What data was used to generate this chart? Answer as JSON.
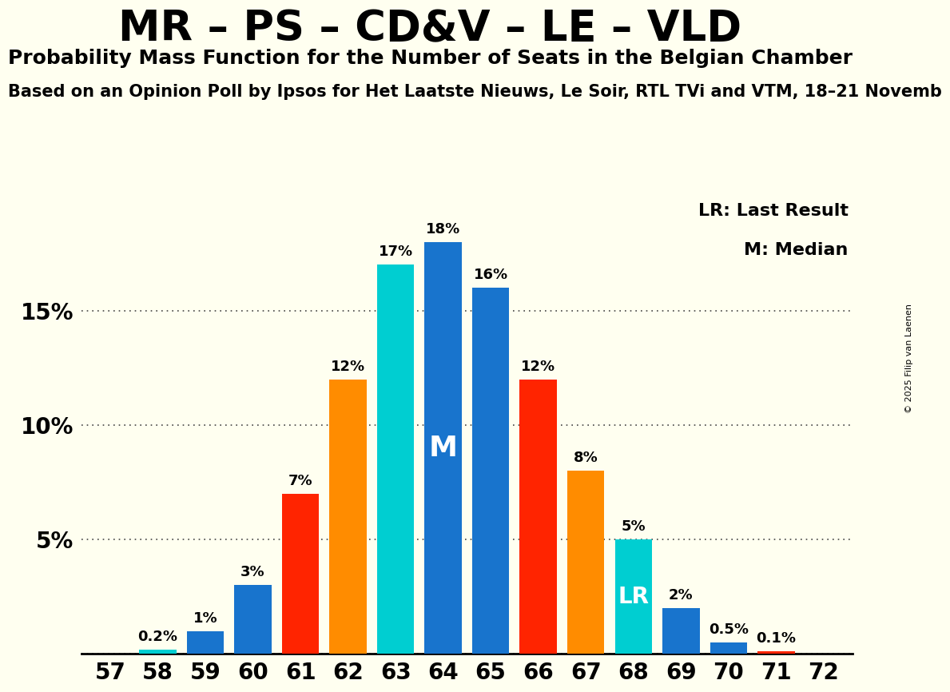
{
  "title": "MR – PS – CD&V – LE – VLD",
  "subtitle": "Probability Mass Function for the Number of Seats in the Belgian Chamber",
  "subtitle2": "Based on an Opinion Poll by Ipsos for Het Laatste Nieuws, Le Soir, RTL TVi and VTM, 18–21 Novemb",
  "copyright": "© 2025 Filip van Laenen",
  "seats": [
    57,
    58,
    59,
    60,
    61,
    62,
    63,
    64,
    65,
    66,
    67,
    68,
    69,
    70,
    71,
    72
  ],
  "probabilities": [
    0.0,
    0.2,
    1.0,
    3.0,
    7.0,
    12.0,
    17.0,
    18.0,
    16.0,
    12.0,
    8.0,
    5.0,
    2.0,
    0.5,
    0.1,
    0.0
  ],
  "bar_colors_map": {
    "57": "#1874CD",
    "58": "#00CED1",
    "59": "#1874CD",
    "60": "#1874CD",
    "61": "#FF2400",
    "62": "#FF8C00",
    "63": "#00CED1",
    "64": "#1874CD",
    "65": "#1874CD",
    "66": "#FF2400",
    "67": "#FF8C00",
    "68": "#00CED1",
    "69": "#1874CD",
    "70": "#1874CD",
    "71": "#FF2400",
    "72": "#FF2400"
  },
  "median_seat": 64,
  "lr_seat": 68,
  "ylim": [
    0,
    20
  ],
  "yticks": [
    0,
    5,
    10,
    15
  ],
  "ytick_labels": [
    "",
    "5%",
    "10%",
    "15%"
  ],
  "background_color": "#FFFFF0",
  "legend_lr": "LR: Last Result",
  "legend_m": "M: Median",
  "bar_width": 0.78,
  "title_fontsize": 38,
  "subtitle_fontsize": 18,
  "subtitle2_fontsize": 15,
  "tick_label_fontsize": 20,
  "bar_label_fontsize": 13,
  "legend_fontsize": 16,
  "m_label_fontsize": 26,
  "lr_label_fontsize": 20,
  "copyright_fontsize": 8
}
